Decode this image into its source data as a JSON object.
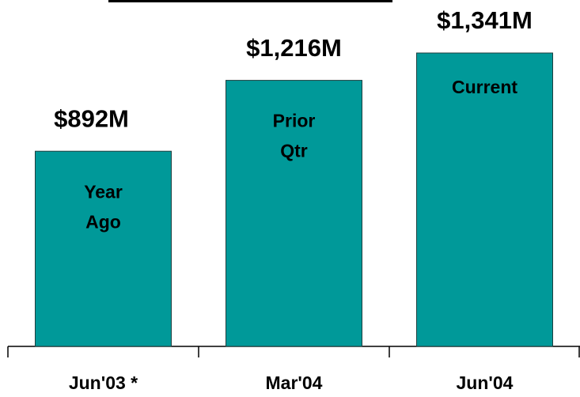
{
  "chart_data": {
    "type": "bar",
    "categories": [
      "Jun'03 *",
      "Mar'04",
      "Jun'04"
    ],
    "values": [
      892,
      1216,
      1341
    ],
    "value_labels": [
      "$892M",
      "$1,216M",
      "$1,341M"
    ],
    "bar_labels": [
      [
        "Year",
        "Ago"
      ],
      [
        "Prior",
        "Qtr"
      ],
      [
        "Current"
      ]
    ],
    "color": "#009999"
  }
}
